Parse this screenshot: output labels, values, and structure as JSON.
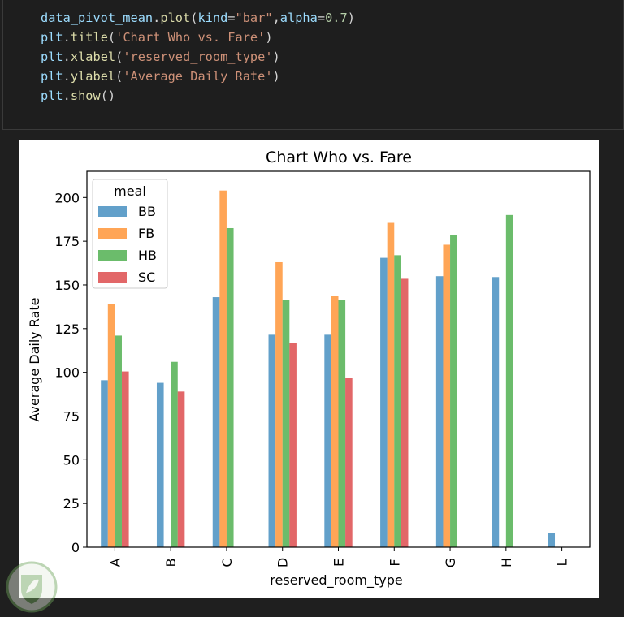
{
  "code": {
    "lines": [
      "data_pivot_mean.plot(kind=\"bar\",alpha=0.7)",
      "plt.title('Chart Who vs. Fare')",
      "plt.xlabel('reserved_room_type')",
      "plt.ylabel('Average Daily Rate')",
      "plt.show()"
    ]
  },
  "chart_data": {
    "type": "bar",
    "title": "Chart Who vs. Fare",
    "xlabel": "reserved_room_type",
    "ylabel": "Average Daily Rate",
    "categories": [
      "A",
      "B",
      "C",
      "D",
      "E",
      "F",
      "G",
      "H",
      "L"
    ],
    "ylim": [
      0,
      215
    ],
    "yticks": [
      0,
      25,
      50,
      75,
      100,
      125,
      150,
      175,
      200
    ],
    "legend_title": "meal",
    "legend_position": "top-left",
    "grid": false,
    "alpha": 0.7,
    "series": [
      {
        "name": "BB",
        "color": "#1f77b4",
        "values": [
          95.5,
          94,
          143,
          121.5,
          121.5,
          165.5,
          155,
          154.5,
          8
        ]
      },
      {
        "name": "FB",
        "color": "#ff7f0e",
        "values": [
          139,
          null,
          204,
          163,
          143.5,
          185.5,
          173,
          null,
          null
        ]
      },
      {
        "name": "HB",
        "color": "#2ca02c",
        "values": [
          121,
          106,
          182.5,
          141.5,
          141.5,
          167,
          178.5,
          190,
          null
        ]
      },
      {
        "name": "SC",
        "color": "#d62728",
        "values": [
          100.5,
          89,
          null,
          117,
          97,
          153.5,
          null,
          null,
          null
        ]
      }
    ]
  },
  "watermark": {
    "icon": "leaf-shield-logo",
    "color": "#6da35a"
  }
}
